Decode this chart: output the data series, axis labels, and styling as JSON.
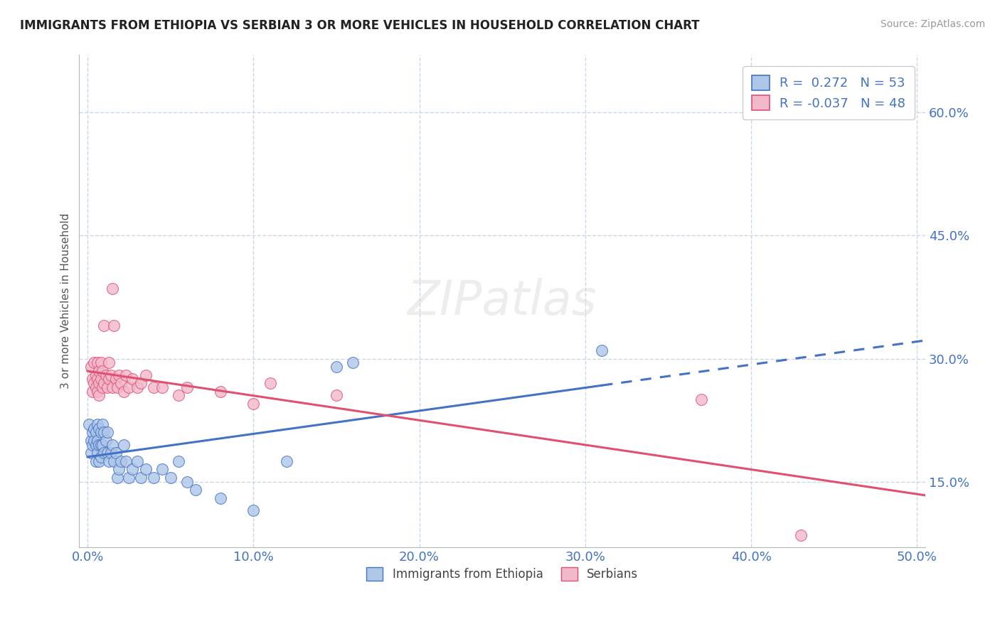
{
  "title": "IMMIGRANTS FROM ETHIOPIA VS SERBIAN 3 OR MORE VEHICLES IN HOUSEHOLD CORRELATION CHART",
  "source": "Source: ZipAtlas.com",
  "ylabel": "3 or more Vehicles in Household",
  "x_ticks": [
    "0.0%",
    "10.0%",
    "20.0%",
    "30.0%",
    "40.0%",
    "50.0%"
  ],
  "x_tick_vals": [
    0.0,
    0.1,
    0.2,
    0.3,
    0.4,
    0.5
  ],
  "y_ticks": [
    "15.0%",
    "30.0%",
    "45.0%",
    "60.0%"
  ],
  "y_tick_vals": [
    0.15,
    0.3,
    0.45,
    0.6
  ],
  "xlim": [
    -0.005,
    0.505
  ],
  "ylim": [
    0.07,
    0.67
  ],
  "legend_labels": [
    "Immigrants from Ethiopia",
    "Serbians"
  ],
  "r_ethiopia": 0.272,
  "n_ethiopia": 53,
  "r_serbian": -0.037,
  "n_serbian": 48,
  "ethiopia_color": "#aec6e8",
  "serbian_color": "#f2b8cb",
  "ethiopia_line_color": "#4472c4",
  "serbian_line_color": "#e05070",
  "background_color": "#ffffff",
  "grid_color": "#c8d8ea",
  "ethiopia_scatter": [
    [
      0.001,
      0.22
    ],
    [
      0.002,
      0.2
    ],
    [
      0.002,
      0.185
    ],
    [
      0.003,
      0.21
    ],
    [
      0.003,
      0.195
    ],
    [
      0.004,
      0.215
    ],
    [
      0.004,
      0.2
    ],
    [
      0.005,
      0.21
    ],
    [
      0.005,
      0.195
    ],
    [
      0.005,
      0.175
    ],
    [
      0.006,
      0.22
    ],
    [
      0.006,
      0.2
    ],
    [
      0.006,
      0.185
    ],
    [
      0.007,
      0.215
    ],
    [
      0.007,
      0.195
    ],
    [
      0.007,
      0.175
    ],
    [
      0.008,
      0.21
    ],
    [
      0.008,
      0.195
    ],
    [
      0.008,
      0.18
    ],
    [
      0.009,
      0.22
    ],
    [
      0.009,
      0.195
    ],
    [
      0.01,
      0.21
    ],
    [
      0.01,
      0.185
    ],
    [
      0.011,
      0.2
    ],
    [
      0.012,
      0.185
    ],
    [
      0.012,
      0.21
    ],
    [
      0.013,
      0.175
    ],
    [
      0.014,
      0.185
    ],
    [
      0.015,
      0.195
    ],
    [
      0.016,
      0.175
    ],
    [
      0.017,
      0.185
    ],
    [
      0.018,
      0.155
    ],
    [
      0.019,
      0.165
    ],
    [
      0.02,
      0.175
    ],
    [
      0.022,
      0.195
    ],
    [
      0.023,
      0.175
    ],
    [
      0.025,
      0.155
    ],
    [
      0.027,
      0.165
    ],
    [
      0.03,
      0.175
    ],
    [
      0.032,
      0.155
    ],
    [
      0.035,
      0.165
    ],
    [
      0.04,
      0.155
    ],
    [
      0.045,
      0.165
    ],
    [
      0.05,
      0.155
    ],
    [
      0.055,
      0.175
    ],
    [
      0.06,
      0.15
    ],
    [
      0.065,
      0.14
    ],
    [
      0.08,
      0.13
    ],
    [
      0.1,
      0.115
    ],
    [
      0.12,
      0.175
    ],
    [
      0.15,
      0.29
    ],
    [
      0.16,
      0.295
    ],
    [
      0.31,
      0.31
    ]
  ],
  "serbian_scatter": [
    [
      0.002,
      0.29
    ],
    [
      0.003,
      0.275
    ],
    [
      0.003,
      0.26
    ],
    [
      0.004,
      0.295
    ],
    [
      0.004,
      0.27
    ],
    [
      0.005,
      0.28
    ],
    [
      0.005,
      0.265
    ],
    [
      0.006,
      0.295
    ],
    [
      0.006,
      0.275
    ],
    [
      0.006,
      0.26
    ],
    [
      0.007,
      0.285
    ],
    [
      0.007,
      0.27
    ],
    [
      0.007,
      0.255
    ],
    [
      0.008,
      0.295
    ],
    [
      0.008,
      0.275
    ],
    [
      0.009,
      0.285
    ],
    [
      0.009,
      0.265
    ],
    [
      0.01,
      0.34
    ],
    [
      0.01,
      0.27
    ],
    [
      0.011,
      0.28
    ],
    [
      0.012,
      0.265
    ],
    [
      0.013,
      0.295
    ],
    [
      0.013,
      0.275
    ],
    [
      0.014,
      0.28
    ],
    [
      0.015,
      0.265
    ],
    [
      0.015,
      0.385
    ],
    [
      0.016,
      0.34
    ],
    [
      0.017,
      0.275
    ],
    [
      0.018,
      0.265
    ],
    [
      0.019,
      0.28
    ],
    [
      0.02,
      0.27
    ],
    [
      0.022,
      0.26
    ],
    [
      0.023,
      0.28
    ],
    [
      0.025,
      0.265
    ],
    [
      0.027,
      0.275
    ],
    [
      0.03,
      0.265
    ],
    [
      0.032,
      0.27
    ],
    [
      0.035,
      0.28
    ],
    [
      0.04,
      0.265
    ],
    [
      0.045,
      0.265
    ],
    [
      0.055,
      0.255
    ],
    [
      0.06,
      0.265
    ],
    [
      0.08,
      0.26
    ],
    [
      0.1,
      0.245
    ],
    [
      0.11,
      0.27
    ],
    [
      0.15,
      0.255
    ],
    [
      0.37,
      0.25
    ],
    [
      0.43,
      0.085
    ]
  ]
}
